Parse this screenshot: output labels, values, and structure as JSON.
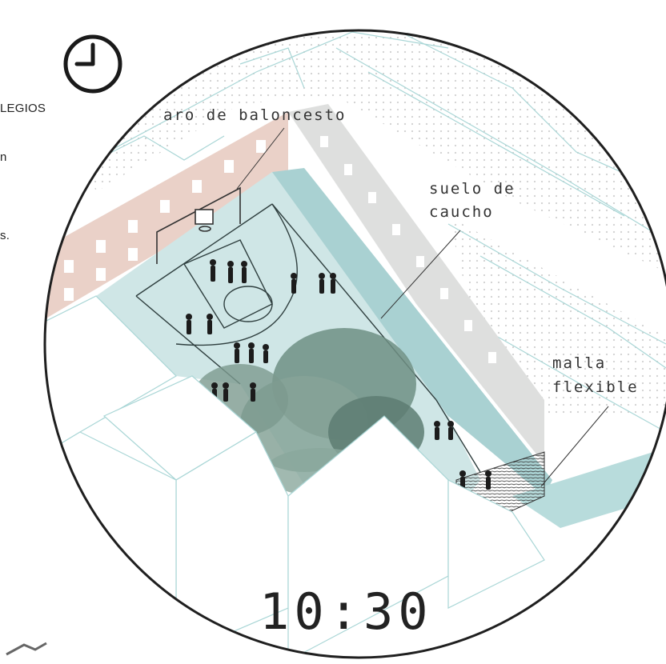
{
  "side_text": {
    "line1": "LEGIOS",
    "line2": "n",
    "line3": "s."
  },
  "labels": {
    "hoop": "aro de baloncesto",
    "rubber_floor_1": "suelo de",
    "rubber_floor_2": "caucho",
    "mesh_1": "malla",
    "mesh_2": "flexible"
  },
  "time": "10:30",
  "icons": {
    "clock": "clock-icon"
  },
  "colors": {
    "court": "#cfe6e6",
    "court_line": "#2f3f3f",
    "brick": "#e8c6bb",
    "concrete": "#dadcdb",
    "roof_line": "#9fd0d0",
    "tree": "#6f8f84"
  }
}
